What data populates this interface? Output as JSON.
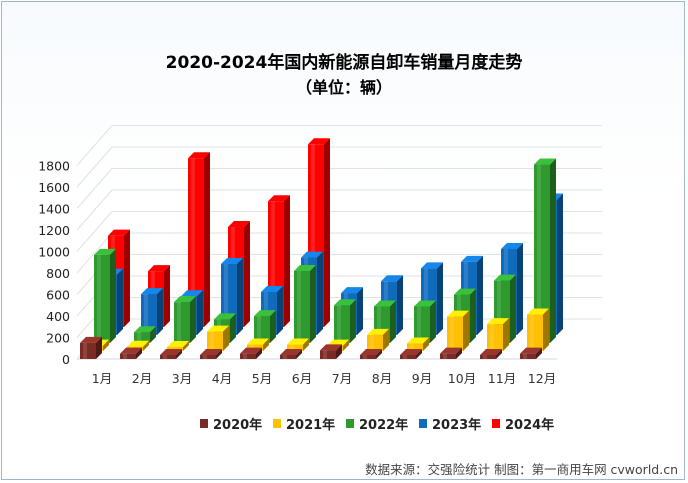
{
  "chart_data": {
    "type": "bar",
    "title": "2020-2024年国内新能源自卸车销量月度走势",
    "subtitle": "（单位：辆）",
    "categories": [
      "1月",
      "2月",
      "3月",
      "4月",
      "5月",
      "6月",
      "7月",
      "8月",
      "9月",
      "10月",
      "11月",
      "12月"
    ],
    "series": [
      {
        "name": "2020年",
        "color": "#7b2b25",
        "values": [
          150,
          50,
          10,
          10,
          50,
          10,
          80,
          20,
          10,
          50,
          10,
          50
        ]
      },
      {
        "name": "2021年",
        "color": "#ffc000",
        "values": [
          50,
          40,
          10,
          180,
          60,
          60,
          50,
          150,
          70,
          320,
          250,
          340
        ]
      },
      {
        "name": "2022年",
        "color": "#2e9a2e",
        "values": [
          820,
          100,
          380,
          220,
          250,
          670,
          350,
          340,
          340,
          450,
          580,
          1660
        ]
      },
      {
        "name": "2023年",
        "color": "#0f6cbd",
        "values": [
          560,
          380,
          360,
          660,
          400,
          720,
          390,
          500,
          620,
          680,
          800,
          1260
        ]
      },
      {
        "name": "2024年",
        "color": "#ff0000",
        "values": [
          850,
          520,
          1570,
          930,
          1170,
          1700,
          null,
          null,
          null,
          null,
          null,
          null
        ]
      }
    ],
    "ylim": [
      0,
      1800
    ],
    "yticks": [
      0,
      200,
      400,
      600,
      800,
      1000,
      1200,
      1400,
      1600,
      1800
    ],
    "xlabel": "",
    "ylabel": "",
    "grid": true,
    "legend_position": "bottom"
  },
  "footer": {
    "source": "数据来源：交强险统计 制图：第一商用车网 cvworld.cn"
  }
}
